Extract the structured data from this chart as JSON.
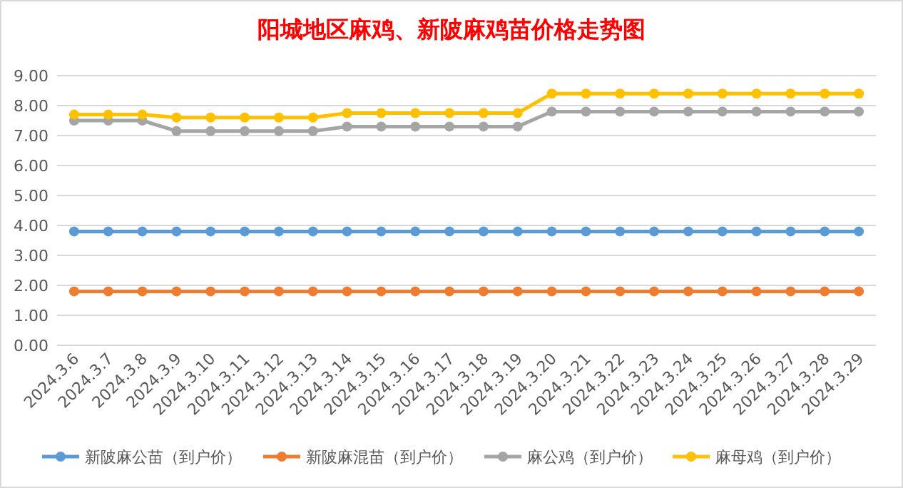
{
  "chart_data": {
    "type": "line",
    "title": "阳城地区麻鸡、新陂麻鸡苗价格走势图",
    "categories": [
      "2024.3.6",
      "2024.3.7",
      "2024.3.8",
      "2024.3.9",
      "2024.3.10",
      "2024.3.11",
      "2024.3.12",
      "2024.3.13",
      "2024.3.14",
      "2024.3.15",
      "2024.3.16",
      "2024.3.17",
      "2024.3.18",
      "2024.3.19",
      "2024.3.20",
      "2024.3.21",
      "2024.3.22",
      "2024.3.23",
      "2024.3.24",
      "2024.3.25",
      "2024.3.26",
      "2024.3.27",
      "2024.3.28",
      "2024.3.29"
    ],
    "series": [
      {
        "name": "新陂麻公苗（到户价）",
        "color": "#5b9bd5",
        "values": [
          3.8,
          3.8,
          3.8,
          3.8,
          3.8,
          3.8,
          3.8,
          3.8,
          3.8,
          3.8,
          3.8,
          3.8,
          3.8,
          3.8,
          3.8,
          3.8,
          3.8,
          3.8,
          3.8,
          3.8,
          3.8,
          3.8,
          3.8,
          3.8
        ]
      },
      {
        "name": "新陂麻混苗（到户价）",
        "color": "#ed7d31",
        "values": [
          1.8,
          1.8,
          1.8,
          1.8,
          1.8,
          1.8,
          1.8,
          1.8,
          1.8,
          1.8,
          1.8,
          1.8,
          1.8,
          1.8,
          1.8,
          1.8,
          1.8,
          1.8,
          1.8,
          1.8,
          1.8,
          1.8,
          1.8,
          1.8
        ]
      },
      {
        "name": "麻公鸡（到户价）",
        "color": "#a5a5a5",
        "values": [
          7.5,
          7.5,
          7.5,
          7.15,
          7.15,
          7.15,
          7.15,
          7.15,
          7.3,
          7.3,
          7.3,
          7.3,
          7.3,
          7.3,
          7.8,
          7.8,
          7.8,
          7.8,
          7.8,
          7.8,
          7.8,
          7.8,
          7.8,
          7.8
        ]
      },
      {
        "name": "麻母鸡（到户价）",
        "color": "#ffc000",
        "values": [
          7.7,
          7.7,
          7.7,
          7.6,
          7.6,
          7.6,
          7.6,
          7.6,
          7.75,
          7.75,
          7.75,
          7.75,
          7.75,
          7.75,
          8.4,
          8.4,
          8.4,
          8.4,
          8.4,
          8.4,
          8.4,
          8.4,
          8.4,
          8.4
        ]
      }
    ],
    "ylim": [
      0,
      9
    ],
    "yticks": [
      {
        "value": 0,
        "label": "0.00"
      },
      {
        "value": 1,
        "label": "1.00"
      },
      {
        "value": 2,
        "label": "2.00"
      },
      {
        "value": 3,
        "label": "3.00"
      },
      {
        "value": 4,
        "label": "4.00"
      },
      {
        "value": 5,
        "label": "5.00"
      },
      {
        "value": 6,
        "label": "6.00"
      },
      {
        "value": 7,
        "label": "7.00"
      },
      {
        "value": 8,
        "label": "8.00"
      },
      {
        "value": 9,
        "label": "9.00"
      }
    ],
    "grid": "y",
    "legend": "bottom",
    "marker": "circle",
    "line_style": "solid"
  }
}
